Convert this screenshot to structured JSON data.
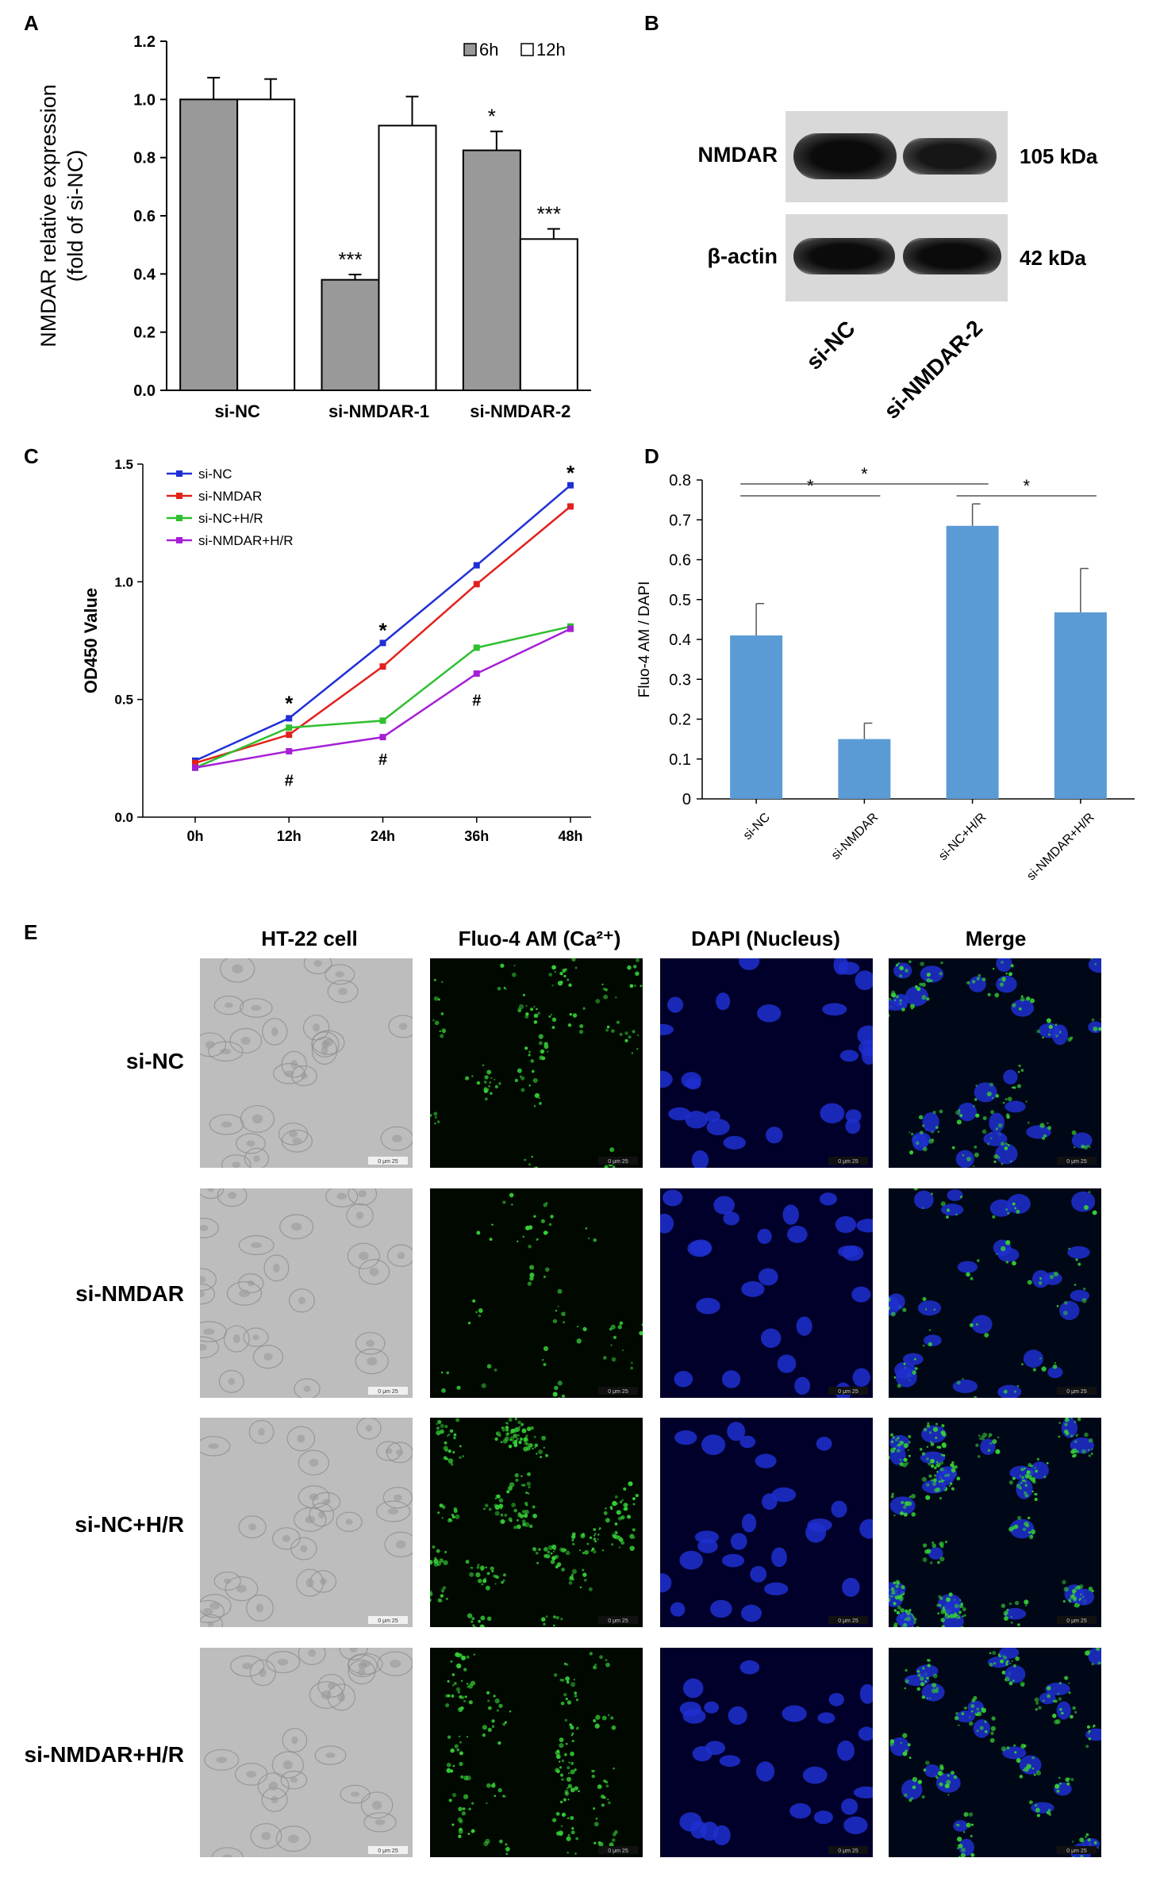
{
  "panel_labels": {
    "a": "A",
    "b": "B",
    "c": "C",
    "d": "D",
    "e": "E"
  },
  "chart_data": [
    {
      "id": "A",
      "type": "bar",
      "ylabel": "NMDAR relative expression\n(fold of si-NC)",
      "ylim": [
        0,
        1.2
      ],
      "yticks": [
        "0.0",
        "0.2",
        "0.4",
        "0.6",
        "0.8",
        "1.0",
        "1.2"
      ],
      "categories": [
        "si-NC",
        "si-NMDAR-1",
        "si-NMDAR-2"
      ],
      "legend_position": "top-right",
      "series": [
        {
          "name": "6h",
          "color": "#999999",
          "values": [
            1.0,
            0.38,
            0.825
          ],
          "errors": [
            0.075,
            0.018,
            0.065
          ],
          "annotations": [
            "",
            "***",
            "*"
          ]
        },
        {
          "name": "12h",
          "color": "#ffffff",
          "values": [
            1.0,
            0.91,
            0.52
          ],
          "errors": [
            0.07,
            0.1,
            0.035
          ],
          "annotations": [
            "",
            "",
            "***"
          ]
        }
      ]
    },
    {
      "id": "C",
      "type": "line",
      "ylabel": "OD450 Value",
      "ylim": [
        0,
        1.5
      ],
      "yticks": [
        "0.0",
        "0.5",
        "1.0",
        "1.5"
      ],
      "categories": [
        "0h",
        "12h",
        "24h",
        "36h",
        "48h"
      ],
      "legend_position": "top-left",
      "series": [
        {
          "name": "si-NC",
          "color": "#1f2fd6",
          "values": [
            0.24,
            0.42,
            0.74,
            1.07,
            1.41
          ]
        },
        {
          "name": "si-NMDAR",
          "color": "#e3201c",
          "values": [
            0.23,
            0.35,
            0.64,
            0.99,
            1.32
          ]
        },
        {
          "name": "si-NC+H/R",
          "color": "#2fbf2f",
          "values": [
            0.21,
            0.38,
            0.41,
            0.72,
            0.81
          ]
        },
        {
          "name": "si-NMDAR+H/R",
          "color": "#a51fd6",
          "values": [
            0.21,
            0.28,
            0.34,
            0.61,
            0.8
          ]
        }
      ],
      "annotations": [
        {
          "x": "12h",
          "y": 0.48,
          "text": "*"
        },
        {
          "x": "24h",
          "y": 0.79,
          "text": "*"
        },
        {
          "x": "48h",
          "y": 1.46,
          "text": "*"
        },
        {
          "x": "12h",
          "y": 0.16,
          "text": "#"
        },
        {
          "x": "24h",
          "y": 0.25,
          "text": "#"
        },
        {
          "x": "36h",
          "y": 0.5,
          "text": "#"
        }
      ]
    },
    {
      "id": "D",
      "type": "bar",
      "ylabel": "Fluo-4 AM / DAPI",
      "ylim": [
        0,
        0.8
      ],
      "yticks": [
        "0",
        "0.1",
        "0.2",
        "0.3",
        "0.4",
        "0.5",
        "0.6",
        "0.7",
        "0.8"
      ],
      "categories": [
        "si-NC",
        "si-NMDAR",
        "si-NC+H/R",
        "si-NMDAR+H/R"
      ],
      "series": [
        {
          "color": "#5b9bd5",
          "values": [
            0.41,
            0.15,
            0.685,
            0.468
          ],
          "errors": [
            0.08,
            0.04,
            0.055,
            0.11
          ]
        }
      ],
      "significance": [
        {
          "from": 0,
          "to": 1,
          "text": "*"
        },
        {
          "from": 0,
          "to": 2,
          "text": "*"
        },
        {
          "from": 2,
          "to": 3,
          "text": "*"
        }
      ]
    }
  ],
  "western_blot": {
    "rows": [
      {
        "label": "NMDAR",
        "size": "105 kDa"
      },
      {
        "label": "β-actin",
        "size": "42 kDa"
      }
    ],
    "lanes": [
      "si-NC",
      "si-NMDAR-2"
    ]
  },
  "microscopy": {
    "columns": [
      "HT-22 cell",
      "Fluo-4 AM (Ca²⁺)",
      "DAPI (Nucleus)",
      "Merge"
    ],
    "rows": [
      "si-NC",
      "si-NMDAR",
      "si-NC+H/R",
      "si-NMDAR+H/R"
    ],
    "scale_text": "0 μm 25"
  }
}
